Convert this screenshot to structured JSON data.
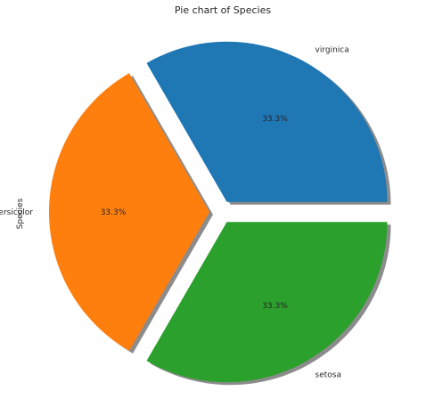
{
  "chart_data": {
    "type": "pie",
    "title": "Pie chart of Species",
    "ylabel": "Species",
    "xlabel": "",
    "labels": [
      "virginica",
      "versicolor",
      "setosa"
    ],
    "values": [
      33.3,
      33.3,
      33.3
    ],
    "percent_labels": [
      "33.3%",
      "33.3%",
      "33.3%"
    ],
    "colors": [
      "#1f77b4",
      "#ff7f0e",
      "#2ca02c"
    ],
    "exploded": true,
    "shadow": true,
    "start_angle_deg": 0
  }
}
